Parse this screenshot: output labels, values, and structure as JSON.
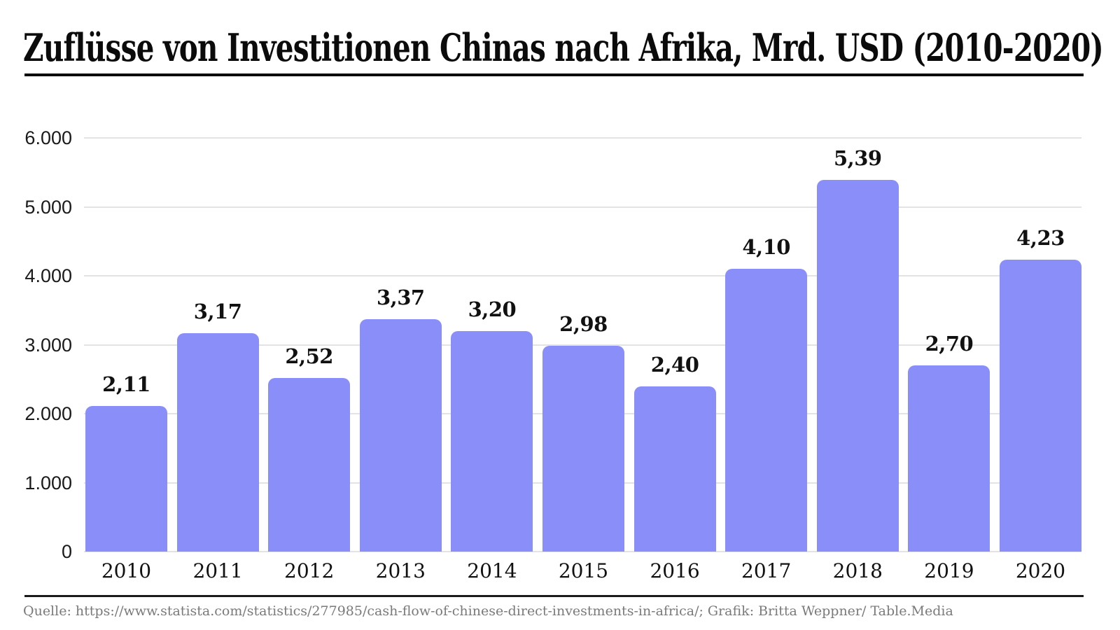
{
  "page": {
    "title": "Zuflüsse von Investitionen Chinas nach Afrika, Mrd. USD (2010-2020)",
    "source_line": "Quelle: https://www.statista.com/statistics/277985/cash-flow-of-chinese-direct-investments-in-africa/; Grafik: Britta Weppner/ Table.Media"
  },
  "chart_data": {
    "type": "bar",
    "title": "Zuflüsse von Investitionen Chinas nach Afrika, Mrd. USD (2010-2020)",
    "categories": [
      "2010",
      "2011",
      "2012",
      "2013",
      "2014",
      "2015",
      "2016",
      "2017",
      "2018",
      "2019",
      "2020"
    ],
    "values_mrd_usd": [
      2.11,
      3.17,
      2.52,
      3.37,
      3.2,
      2.98,
      2.4,
      4.1,
      5.39,
      2.7,
      4.23
    ],
    "value_labels": [
      "2,11",
      "3,17",
      "2,52",
      "3,37",
      "3,20",
      "2,98",
      "2,40",
      "4,10",
      "5,39",
      "2,70",
      "4,23"
    ],
    "xlabel": "",
    "ylabel": "",
    "y_axis": {
      "range": [
        0,
        6000
      ],
      "ticks": [
        0,
        1000,
        2000,
        3000,
        4000,
        5000,
        6000
      ],
      "tick_labels": [
        "0",
        "1.000",
        "2.000",
        "3.000",
        "4.000",
        "5.000",
        "6.000"
      ]
    },
    "grid": "horizontal",
    "legend": "none",
    "colors": {
      "bar": "#8A8EF8",
      "gridline": "#E3E3E3",
      "title": "#0B0B0B",
      "labels": "#111111",
      "source_text": "#7A7A7A"
    }
  }
}
